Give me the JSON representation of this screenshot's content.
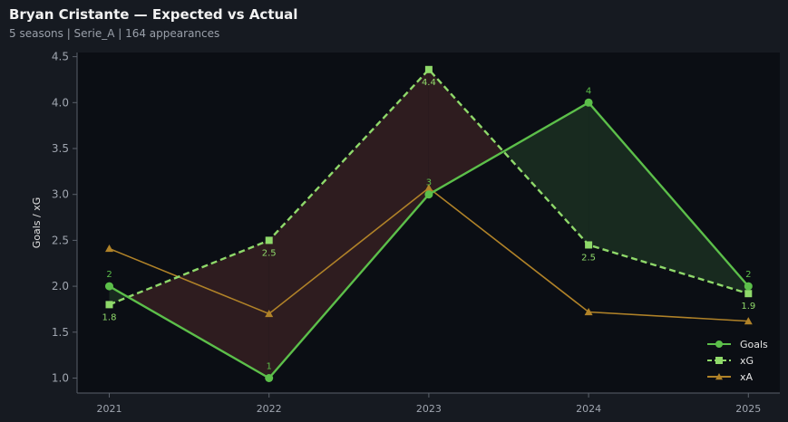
{
  "header": {
    "title": "Bryan Cristante — Expected vs Actual",
    "subtitle": "5 seasons | Serie_A | 164 appearances"
  },
  "colors": {
    "goals": "#5cbf4a",
    "xg": "#8fd96a",
    "xa": "#b08228",
    "under_fill": "#2e1c1f",
    "over_fill": "#182a1f",
    "plot_bg": "#0b0e14",
    "page_bg": "#161a21"
  },
  "chart_data": {
    "type": "line",
    "xlabel": "",
    "ylabel": "Goals / xG",
    "x": [
      "2021",
      "2022",
      "2023",
      "2024",
      "2025"
    ],
    "ylim": [
      0.85,
      4.52
    ],
    "yticks": [
      "1.0",
      "1.5",
      "2.0",
      "2.5",
      "3.0",
      "3.5",
      "4.0",
      "4.5"
    ],
    "grid": false,
    "legend_position": "bottom-right",
    "series": [
      {
        "name": "Goals",
        "values": [
          2,
          1,
          3,
          4,
          2
        ],
        "labels": [
          "2",
          "1",
          "3",
          "4",
          "2"
        ],
        "marker": "circle",
        "style": "solid"
      },
      {
        "name": "xG",
        "values": [
          1.8,
          2.5,
          4.36,
          2.45,
          1.92
        ],
        "labels": [
          "1.8",
          "2.5",
          "4.4",
          "2.5",
          "1.9"
        ],
        "marker": "square",
        "style": "dashed"
      },
      {
        "name": "xA",
        "values": [
          2.41,
          1.7,
          3.07,
          1.72,
          1.62
        ],
        "marker": "triangle",
        "style": "solid"
      }
    ]
  }
}
